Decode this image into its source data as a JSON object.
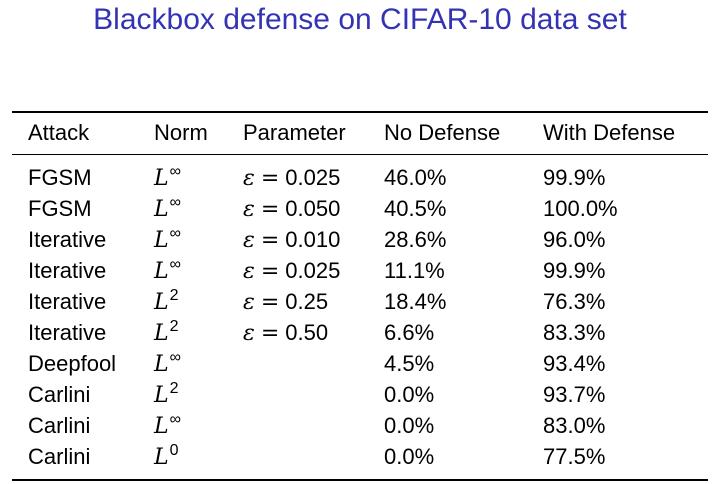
{
  "title": "Blackbox defense on CIFAR-10 data set",
  "table": {
    "headers": [
      "Attack",
      "Norm",
      "Parameter",
      "No Defense",
      "With Defense"
    ],
    "rows": [
      {
        "attack": "FGSM",
        "norm_base": "L",
        "norm_sup": "∞",
        "param_sym": "ε",
        "param_eq": "=",
        "param_val": "0.025",
        "no_defense": "46.0%",
        "with_defense": "99.9%"
      },
      {
        "attack": "FGSM",
        "norm_base": "L",
        "norm_sup": "∞",
        "param_sym": "ε",
        "param_eq": "=",
        "param_val": "0.050",
        "no_defense": "40.5%",
        "with_defense": "100.0%"
      },
      {
        "attack": "Iterative",
        "norm_base": "L",
        "norm_sup": "∞",
        "param_sym": "ε",
        "param_eq": "=",
        "param_val": "0.010",
        "no_defense": "28.6%",
        "with_defense": "96.0%"
      },
      {
        "attack": "Iterative",
        "norm_base": "L",
        "norm_sup": "∞",
        "param_sym": "ε",
        "param_eq": "=",
        "param_val": "0.025",
        "no_defense": "11.1%",
        "with_defense": "99.9%"
      },
      {
        "attack": "Iterative",
        "norm_base": "L",
        "norm_sup": "2",
        "param_sym": "ε",
        "param_eq": "=",
        "param_val": "0.25",
        "no_defense": "18.4%",
        "with_defense": "76.3%"
      },
      {
        "attack": "Iterative",
        "norm_base": "L",
        "norm_sup": "2",
        "param_sym": "ε",
        "param_eq": "=",
        "param_val": "0.50",
        "no_defense": "6.6%",
        "with_defense": "83.3%"
      },
      {
        "attack": "Deepfool",
        "norm_base": "L",
        "norm_sup": "∞",
        "param_sym": "",
        "param_eq": "",
        "param_val": "",
        "no_defense": "4.5%",
        "with_defense": "93.4%"
      },
      {
        "attack": "Carlini",
        "norm_base": "L",
        "norm_sup": "2",
        "param_sym": "",
        "param_eq": "",
        "param_val": "",
        "no_defense": "0.0%",
        "with_defense": "93.7%"
      },
      {
        "attack": "Carlini",
        "norm_base": "L",
        "norm_sup": "∞",
        "param_sym": "",
        "param_eq": "",
        "param_val": "",
        "no_defense": "0.0%",
        "with_defense": "83.0%"
      },
      {
        "attack": "Carlini",
        "norm_base": "L",
        "norm_sup": "0",
        "param_sym": "",
        "param_eq": "",
        "param_val": "",
        "no_defense": "0.0%",
        "with_defense": "77.5%"
      }
    ]
  },
  "colors": {
    "title": "#3333b3",
    "text": "#000000",
    "background": "#ffffff"
  }
}
